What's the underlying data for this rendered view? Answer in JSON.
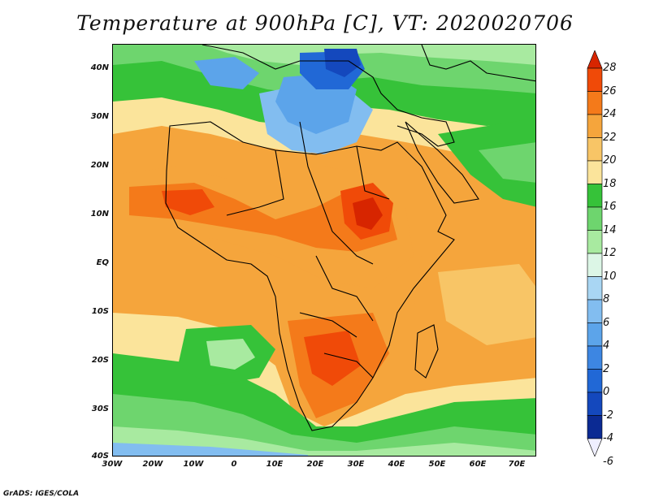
{
  "title": "Temperature at 900hPa [C], VT: 2020020706",
  "footer": "GrADS: IGES/COLA",
  "map": {
    "lat_labels": [
      "40N",
      "30N",
      "20N",
      "10N",
      "EQ",
      "10S",
      "20S",
      "30S",
      "40S"
    ],
    "lon_labels": [
      "30W",
      "20W",
      "10W",
      "0",
      "10E",
      "20E",
      "30E",
      "40E",
      "50E",
      "60E",
      "70E"
    ]
  },
  "colorbar": {
    "labels": [
      "28",
      "26",
      "24",
      "22",
      "20",
      "18",
      "16",
      "14",
      "12",
      "10",
      "8",
      "6",
      "4",
      "2",
      "0",
      "-2",
      "-4",
      "-6"
    ],
    "colors": [
      "#d72500",
      "#f04a08",
      "#f47a1a",
      "#f5a53c",
      "#f8c566",
      "#fbe49b",
      "#36c239",
      "#6ed56e",
      "#a8eaa0",
      "#dcf6e6",
      "#a9d6f3",
      "#82bdf0",
      "#5ca4ea",
      "#3d86e2",
      "#2168d6",
      "#1448bd",
      "#0b2a93",
      "#efefff"
    ]
  }
}
